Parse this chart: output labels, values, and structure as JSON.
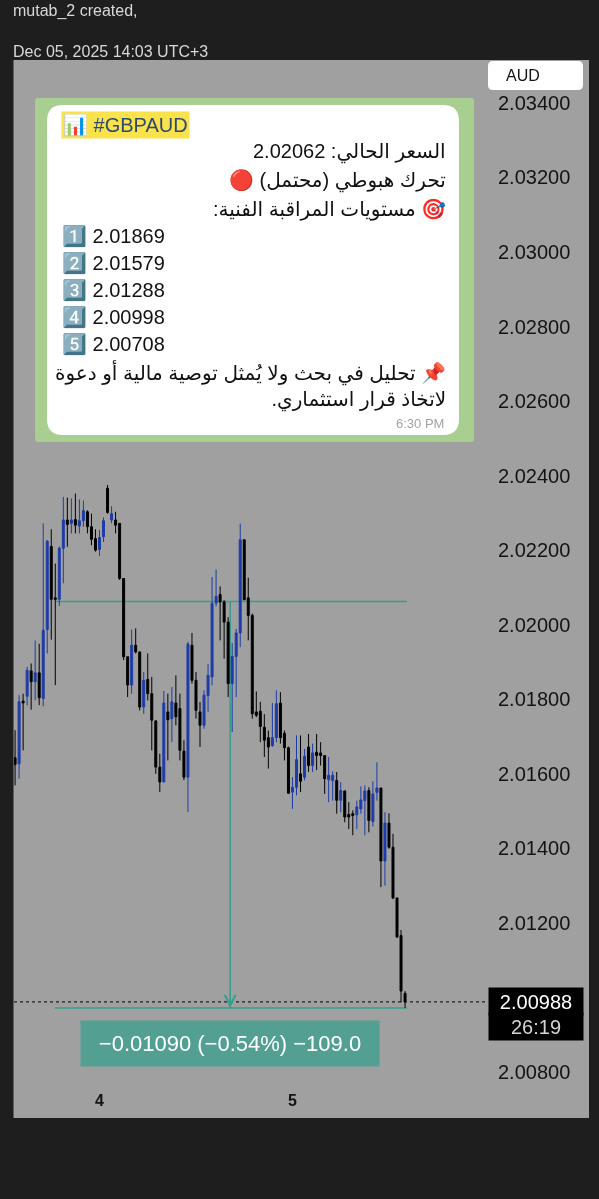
{
  "chart_data": {
    "type": "candlestick",
    "title": "mutab_2 created,",
    "subtitle": "Dec 05, 2025 14:03 UTC+3",
    "ylabel": "AUD",
    "x": [
      "2025-12-03T13:30",
      "2025-12-03T14:00",
      "2025-12-03T14:30",
      "2025-12-03T15:00",
      "2025-12-03T15:30",
      "2025-12-03T16:00",
      "2025-12-03T16:30",
      "2025-12-03T17:00",
      "2025-12-03T17:30",
      "2025-12-03T18:00",
      "2025-12-03T18:30",
      "2025-12-03T19:00",
      "2025-12-03T19:30",
      "2025-12-03T20:00",
      "2025-12-03T20:30",
      "2025-12-03T21:00",
      "2025-12-03T21:30",
      "2025-12-03T22:00",
      "2025-12-03T22:30",
      "2025-12-03T23:00",
      "2025-12-03T23:30",
      "2025-12-04T00:00",
      "2025-12-04T00:30",
      "2025-12-04T01:00",
      "2025-12-04T01:30",
      "2025-12-04T02:00",
      "2025-12-04T02:30",
      "2025-12-04T03:00",
      "2025-12-04T03:30",
      "2025-12-04T04:00",
      "2025-12-04T04:30",
      "2025-12-04T05:00",
      "2025-12-04T05:30",
      "2025-12-04T06:00",
      "2025-12-04T06:30",
      "2025-12-04T07:00",
      "2025-12-04T07:30",
      "2025-12-04T08:00",
      "2025-12-04T08:30",
      "2025-12-04T09:00",
      "2025-12-04T09:30",
      "2025-12-04T10:00",
      "2025-12-04T10:30",
      "2025-12-04T11:00",
      "2025-12-04T11:30",
      "2025-12-04T12:00",
      "2025-12-04T12:30",
      "2025-12-04T13:00",
      "2025-12-04T13:30",
      "2025-12-04T14:00",
      "2025-12-04T14:30",
      "2025-12-04T15:00",
      "2025-12-04T15:30",
      "2025-12-04T16:00",
      "2025-12-04T16:30",
      "2025-12-04T17:00",
      "2025-12-04T17:30",
      "2025-12-04T18:00",
      "2025-12-04T18:30",
      "2025-12-04T19:00",
      "2025-12-04T19:30",
      "2025-12-04T20:00",
      "2025-12-04T20:30",
      "2025-12-04T21:00",
      "2025-12-04T21:30",
      "2025-12-04T22:00",
      "2025-12-04T22:30",
      "2025-12-04T23:00",
      "2025-12-04T23:30",
      "2025-12-05T00:00",
      "2025-12-05T00:30",
      "2025-12-05T01:00",
      "2025-12-05T01:30",
      "2025-12-05T02:00",
      "2025-12-05T02:30",
      "2025-12-05T03:00",
      "2025-12-05T03:30",
      "2025-12-05T04:00",
      "2025-12-05T04:30",
      "2025-12-05T05:00",
      "2025-12-05T05:30",
      "2025-12-05T06:00",
      "2025-12-05T06:30",
      "2025-12-05T07:00",
      "2025-12-05T07:30",
      "2025-12-05T08:00",
      "2025-12-05T08:30",
      "2025-12-05T09:00",
      "2025-12-05T09:30",
      "2025-12-05T10:00",
      "2025-12-05T10:30",
      "2025-12-05T11:00",
      "2025-12-05T11:30",
      "2025-12-05T12:00",
      "2025-12-05T12:30",
      "2025-12-05T13:00",
      "2025-12-05T13:30",
      "2025-12-05T14:00"
    ],
    "ohlc": [
      [
        2.01643,
        2.01717,
        2.01569,
        2.01625
      ],
      [
        2.01627,
        2.01811,
        2.01587,
        2.01793
      ],
      [
        2.01795,
        2.01815,
        2.01663,
        2.0179
      ],
      [
        2.01808,
        2.01887,
        2.01784,
        2.01878
      ],
      [
        2.01876,
        2.01896,
        2.01772,
        2.01847
      ],
      [
        2.01847,
        2.01958,
        2.01797,
        2.01871
      ],
      [
        2.01871,
        2.01949,
        2.01784,
        2.01804
      ],
      [
        2.01802,
        2.02272,
        2.01781,
        2.01985
      ],
      [
        2.01987,
        2.02227,
        2.01923,
        2.02224
      ],
      [
        2.0221,
        2.02256,
        2.0196,
        2.02068
      ],
      [
        2.02072,
        2.02164,
        2.01838,
        2.02068
      ],
      [
        2.02068,
        2.0221,
        2.0205,
        2.02205
      ],
      [
        2.02205,
        2.02343,
        2.02111,
        2.02281
      ],
      [
        2.02281,
        2.02341,
        2.02209,
        2.02269
      ],
      [
        2.02272,
        2.02339,
        2.02245,
        2.02281
      ],
      [
        2.02282,
        2.02352,
        2.02245,
        2.02267
      ],
      [
        2.02265,
        2.02336,
        2.02245,
        2.02279
      ],
      [
        2.02279,
        2.02333,
        2.02263,
        2.02306
      ],
      [
        2.02303,
        2.02307,
        2.02245,
        2.02263
      ],
      [
        2.02263,
        2.02298,
        2.02213,
        2.02229
      ],
      [
        2.02231,
        2.02256,
        2.02196,
        2.022
      ],
      [
        2.02202,
        2.02254,
        2.02184,
        2.02234
      ],
      [
        2.02236,
        2.02288,
        2.02222,
        2.02279
      ],
      [
        2.02366,
        2.02375,
        2.02298,
        2.02301
      ],
      [
        2.02281,
        2.02318,
        2.02272,
        2.02298
      ],
      [
        2.02281,
        2.02303,
        2.02245,
        2.02267
      ],
      [
        2.02272,
        2.02272,
        2.0212,
        2.02124
      ],
      [
        2.02124,
        2.02124,
        2.01905,
        2.01914
      ],
      [
        2.01914,
        2.01914,
        2.01806,
        2.01838
      ],
      [
        2.01838,
        2.01987,
        2.01815,
        2.01945
      ],
      [
        2.01945,
        2.0199,
        2.01923,
        2.01927
      ],
      [
        2.01927,
        2.01927,
        2.0177,
        2.01779
      ],
      [
        2.01779,
        2.01873,
        2.01761,
        2.01851
      ],
      [
        2.01853,
        2.01923,
        2.01797,
        2.01815
      ],
      [
        2.01815,
        2.0186,
        2.01663,
        2.01744
      ],
      [
        2.01742,
        2.01744,
        2.016,
        2.01618
      ],
      [
        2.01618,
        2.01654,
        2.01551,
        2.01578
      ],
      [
        2.01578,
        2.01822,
        2.01578,
        2.0179
      ],
      [
        2.01766,
        2.01815,
        2.01636,
        2.01745
      ],
      [
        2.01748,
        2.01833,
        2.01685,
        2.01793
      ],
      [
        2.0179,
        2.01864,
        2.0173,
        2.01753
      ],
      [
        2.01775,
        2.01815,
        2.01636,
        2.01663
      ],
      [
        2.01661,
        2.0169,
        2.01583,
        2.01591
      ],
      [
        2.01591,
        2.01954,
        2.01497,
        2.01948
      ],
      [
        2.01945,
        2.01978,
        2.01842,
        2.01851
      ],
      [
        2.01851,
        2.01873,
        2.01748,
        2.0177
      ],
      [
        2.01766,
        2.01793,
        2.01672,
        2.0173
      ],
      [
        2.0173,
        2.01824,
        2.01721,
        2.01811
      ],
      [
        2.0181,
        2.01895,
        2.01766,
        2.01864
      ],
      [
        2.0186,
        2.02128,
        2.01837,
        2.02057
      ],
      [
        2.02058,
        2.02148,
        2.02049,
        2.02076
      ],
      [
        2.02081,
        2.02103,
        2.01958,
        2.02061
      ],
      [
        2.02061,
        2.02066,
        2.01909,
        2.02007
      ],
      [
        2.02007,
        2.0202,
        2.01806,
        2.01842
      ],
      [
        2.01842,
        2.01951,
        2.01712,
        2.01915
      ],
      [
        2.01915,
        2.01989,
        2.01806,
        2.01978
      ],
      [
        2.01978,
        2.02271,
        2.0194,
        2.02228
      ],
      [
        2.02228,
        2.02228,
        2.02066,
        2.02067
      ],
      [
        2.02072,
        2.02126,
        2.01958,
        2.02025
      ],
      [
        2.02025,
        2.0203,
        2.01748,
        2.01761
      ],
      [
        2.01766,
        2.01821,
        2.01752,
        2.01757
      ],
      [
        2.01768,
        2.01793,
        2.01685,
        2.01727
      ],
      [
        2.01725,
        2.0176,
        2.01645,
        2.0169
      ],
      [
        2.01697,
        2.01716,
        2.01614,
        2.01672
      ],
      [
        2.01676,
        2.0179,
        2.01672,
        2.01697
      ],
      [
        2.01697,
        2.01824,
        2.01685,
        2.01788
      ],
      [
        2.0179,
        2.01819,
        2.01681,
        2.01697
      ],
      [
        2.01709,
        2.01716,
        2.01636,
        2.0167
      ],
      [
        2.0167,
        2.01673,
        2.01546,
        2.01548
      ],
      [
        2.01551,
        2.01591,
        2.01506,
        2.01564
      ],
      [
        2.01564,
        2.01703,
        2.01542,
        2.01638
      ],
      [
        2.016,
        2.01703,
        2.01551,
        2.0158
      ],
      [
        2.01591,
        2.01667,
        2.01582,
        2.01647
      ],
      [
        2.01672,
        2.01707,
        2.01605,
        2.01622
      ],
      [
        2.01622,
        2.01681,
        2.01605,
        2.01656
      ],
      [
        2.01658,
        2.01707,
        2.0161,
        2.01649
      ],
      [
        2.01656,
        2.01685,
        2.01622,
        2.01649
      ],
      [
        2.01649,
        2.01649,
        2.01546,
        2.01587
      ],
      [
        2.01584,
        2.01645,
        2.01524,
        2.01596
      ],
      [
        2.01582,
        2.01607,
        2.01528,
        2.01596
      ],
      [
        2.01582,
        2.01605,
        2.01493,
        2.01529
      ],
      [
        2.01529,
        2.01578,
        2.01497,
        2.01555
      ],
      [
        2.01554,
        2.01555,
        2.0147,
        2.01484
      ],
      [
        2.01491,
        2.01524,
        2.01452,
        2.01484
      ],
      [
        2.01493,
        2.01502,
        2.01435,
        2.01488
      ],
      [
        2.0149,
        2.01528,
        2.01452,
        2.01511
      ],
      [
        2.01506,
        2.01566,
        2.01493,
        2.0153
      ],
      [
        2.01528,
        2.01569,
        2.01435,
        2.01554
      ],
      [
        2.01555,
        2.01564,
        2.01443,
        2.01475
      ],
      [
        2.01472,
        2.0158,
        2.01459,
        2.01546
      ],
      [
        2.0155,
        2.01631,
        2.01528,
        2.01562
      ],
      [
        2.01562,
        2.01562,
        2.01296,
        2.01366
      ],
      [
        2.01366,
        2.01497,
        2.013,
        2.01468
      ],
      [
        2.01468,
        2.01494,
        2.01399,
        2.01403
      ],
      [
        2.01403,
        2.01439,
        2.01264,
        2.01267
      ],
      [
        2.01267,
        2.01267,
        2.0116,
        2.01162
      ],
      [
        2.01166,
        2.01181,
        2.00987,
        2.01017
      ],
      [
        2.01011,
        2.01017,
        2.00972,
        2.00988
      ]
    ],
    "colors": [
      "#000000",
      "#1e3ca8",
      "#000000",
      "#1e3ca8",
      "#000000",
      "#1e3ca8",
      "#000000",
      "#1e3ca8",
      "#1e3ca8",
      "#000000",
      "#000000",
      "#1e3ca8",
      "#1e3ca8",
      "#000000",
      "#1e3ca8",
      "#000000",
      "#1e3ca8",
      "#1e3ca8",
      "#000000",
      "#000000",
      "#000000",
      "#1e3ca8",
      "#1e3ca8",
      "#000000",
      "#1e3ca8",
      "#000000",
      "#000000",
      "#000000",
      "#000000",
      "#1e3ca8",
      "#000000",
      "#000000",
      "#1e3ca8",
      "#000000",
      "#000000",
      "#000000",
      "#000000",
      "#1e3ca8",
      "#000000",
      "#1e3ca8",
      "#000000",
      "#000000",
      "#000000",
      "#1e3ca8",
      "#000000",
      "#000000",
      "#000000",
      "#1e3ca8",
      "#1e3ca8",
      "#1e3ca8",
      "#1e3ca8",
      "#000000",
      "#000000",
      "#000000",
      "#1e3ca8",
      "#1e3ca8",
      "#1e3ca8",
      "#000000",
      "#000000",
      "#000000",
      "#000000",
      "#000000",
      "#000000",
      "#000000",
      "#1e3ca8",
      "#1e3ca8",
      "#000000",
      "#000000",
      "#000000",
      "#1e3ca8",
      "#1e3ca8",
      "#000000",
      "#1e3ca8",
      "#000000",
      "#1e3ca8",
      "#000000",
      "#000000",
      "#000000",
      "#1e3ca8",
      "#1e3ca8",
      "#000000",
      "#1e3ca8",
      "#000000",
      "#000000",
      "#000000",
      "#1e3ca8",
      "#1e3ca8",
      "#1e3ca8",
      "#000000",
      "#1e3ca8",
      "#1e3ca8",
      "#000000",
      "#1e3ca8",
      "#000000",
      "#000000",
      "#000000",
      "#000000",
      "#000000"
    ],
    "xlim": [
      "2025-12-03T13:22",
      "2025-12-06T00:04"
    ],
    "xticks": [
      {
        "value": "2025-12-04T00:00",
        "label": "4"
      },
      {
        "value": "2025-12-05T00:00",
        "label": "5"
      }
    ],
    "ylim": [
      2.008,
      2.03515
    ],
    "yticks": [
      {
        "value": 2.008,
        "label": "2.00800"
      },
      {
        "value": 2.012,
        "label": "2.01200"
      },
      {
        "value": 2.014,
        "label": "2.01400"
      },
      {
        "value": 2.016,
        "label": "2.01600"
      },
      {
        "value": 2.018,
        "label": "2.01800"
      },
      {
        "value": 2.02,
        "label": "2.02000"
      },
      {
        "value": 2.022,
        "label": "2.02200"
      },
      {
        "value": 2.024,
        "label": "2.02400"
      },
      {
        "value": 2.026,
        "label": "2.02600"
      },
      {
        "value": 2.028,
        "label": "2.02800"
      },
      {
        "value": 2.03,
        "label": "2.03000"
      },
      {
        "value": 2.032,
        "label": "2.03200"
      },
      {
        "value": 2.034,
        "label": "2.03400"
      }
    ],
    "ref_lines": [
      {
        "axis": "y",
        "value": 2.00988,
        "label": "2.00988",
        "color": "#000000",
        "line_style": "dotted"
      },
      {
        "axis": "y",
        "value": 2.02062,
        "color": "#34a08c"
      },
      {
        "axis": "y",
        "value": 2.00972,
        "color": "#34a08c"
      }
    ],
    "annotations": [
      "📊 #GBPAUD",
      "السعر الحالي: 2.02062",
      "تحرك هبوطي (محتمل) 🔴",
      "🎯 مستويات المراقبة الفنية:",
      "1️⃣ 2.01869",
      "2️⃣ 2.01579",
      "3️⃣ 2.01288",
      "4️⃣ 2.00998",
      "5️⃣ 2.00708",
      "📌 تحليل في بحث ولا يُمثل توصية مالية أو دعوة لاتخاذ قرار استثماري.",
      "6:30 PM",
      "26:19",
      {
        "text": "−0.01090 (−0.54%) −109.0",
        "x": "2025-12-04T16:15",
        "y": 2.00972
      }
    ]
  }
}
